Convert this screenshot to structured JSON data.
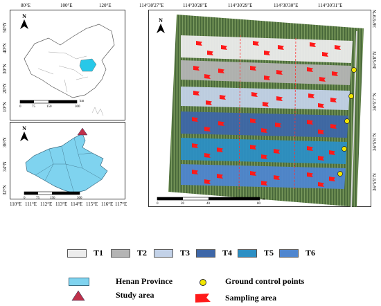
{
  "china_map": {
    "lon_ticks": [
      "80°E",
      "100°E",
      "120°E"
    ],
    "lat_ticks": [
      "50°N",
      "40°N",
      "30°N",
      "20°N",
      "10°N"
    ],
    "scale_labels": [
      "0",
      "75",
      "150",
      "300"
    ],
    "scale_unit": "km"
  },
  "henan_map": {
    "lon_ticks": [
      "110°E",
      "111°E",
      "112°E",
      "113°E",
      "114°E",
      "115°E",
      "116°E",
      "117°E"
    ],
    "lat_ticks": [
      "36°N",
      "34°N",
      "32°N"
    ],
    "scale_labels": [
      "0",
      "75",
      "150",
      "300"
    ]
  },
  "field_map": {
    "lon_ticks": [
      "114°30'27\"E",
      "114°30'28\"E",
      "114°30'29\"E",
      "114°30'30\"E",
      "114°30'31\"E"
    ],
    "lat_ticks": [
      "36°5'9\"N",
      "36°5'8\"N",
      "36°5'7\"N",
      "36°5'6\"N",
      "36°5'5\"N"
    ],
    "scale_labels": [
      "0",
      "20",
      "40",
      "80"
    ],
    "scale_unit": "m"
  },
  "north_label": "N",
  "treatments": [
    {
      "label": "T1",
      "color": "#ececec"
    },
    {
      "label": "T2",
      "color": "#b4b4b4"
    },
    {
      "label": "T3",
      "color": "#c3d2e8"
    },
    {
      "label": "T4",
      "color": "#3e67a8"
    },
    {
      "label": "T5",
      "color": "#2c8fc4"
    },
    {
      "label": "T6",
      "color": "#4f86cf"
    }
  ],
  "legend": {
    "henan_province": "Henan Province",
    "study_area": "Study area",
    "ground_control_points": "Ground control points",
    "sampling_area": "Sampling area"
  },
  "colors": {
    "henan_fill": "#7fd3ef",
    "highlight": "#28c8e8",
    "study_marker": "#c0304a",
    "flag": "#ff1a1a",
    "gcp": "#f2e600",
    "crop_green": "#5a7a44"
  }
}
